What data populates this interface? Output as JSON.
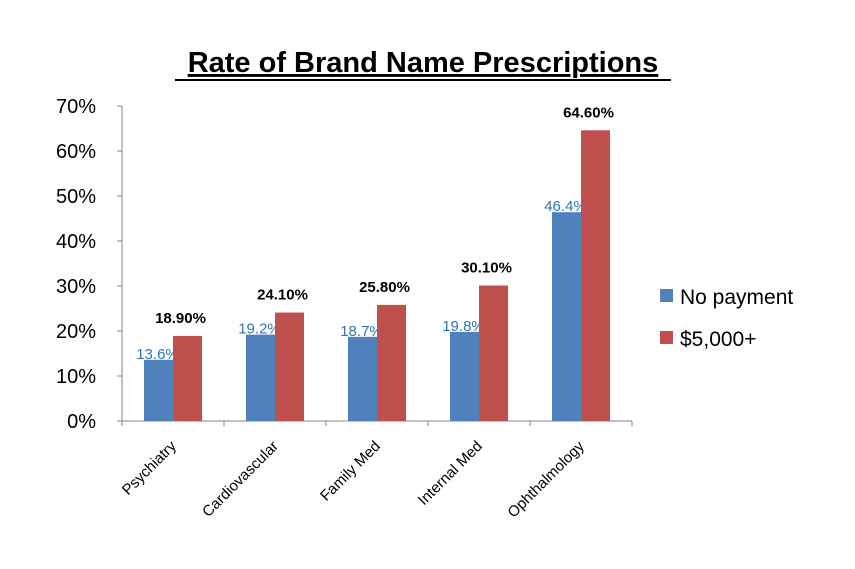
{
  "chart_data": {
    "type": "bar",
    "title": "Rate of Brand Name Prescriptions",
    "categories": [
      "Psychiatry",
      "Cardiovascular",
      "Family Med",
      "Internal Med",
      "Ophthalmology"
    ],
    "series": [
      {
        "name": "No payment",
        "values": [
          13.6,
          19.2,
          18.7,
          19.8,
          46.4
        ],
        "labels": [
          "13.6%",
          "19.2%",
          "18.7%",
          "19.8%",
          "46.4%"
        ],
        "color": "#4F81BD",
        "label_color": "#2E75B6"
      },
      {
        "name": "$5,000+",
        "values": [
          18.9,
          24.1,
          25.8,
          30.1,
          64.6
        ],
        "labels": [
          "18.90%",
          "24.10%",
          "25.80%",
          "30.10%",
          "64.60%"
        ],
        "color": "#C0504D",
        "label_color": "#000000"
      }
    ],
    "ylim": [
      0,
      70
    ],
    "yticks": [
      "0%",
      "10%",
      "20%",
      "30%",
      "40%",
      "50%",
      "60%",
      "70%"
    ],
    "xlabel": "",
    "ylabel": "",
    "grid": false,
    "legend": "right"
  }
}
